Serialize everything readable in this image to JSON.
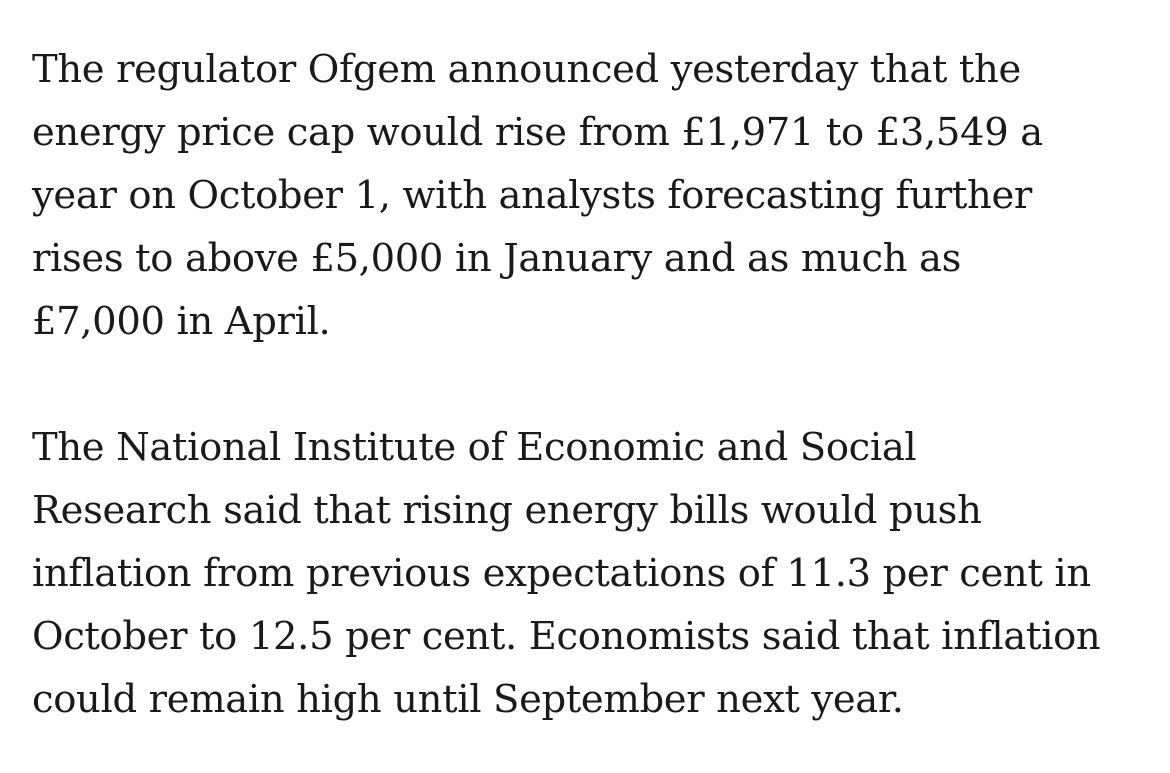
{
  "article": {
    "paragraphs": [
      {
        "lines": [
          "The regulator Ofgem announced yesterday that the",
          "energy price cap would rise from £1,971 to £3,549 a",
          "year on October 1, with analysts forecasting further",
          "rises to above £5,000 in January and as much as",
          "£7,000 in April."
        ]
      },
      {
        "lines": [
          "The National Institute of Economic and Social",
          "Research said that rising energy bills would push",
          "inflation from previous expectations of 11.3 per cent in",
          "October to 12.5 per cent. Economists said that inflation",
          "could remain high until September next year."
        ]
      }
    ]
  }
}
